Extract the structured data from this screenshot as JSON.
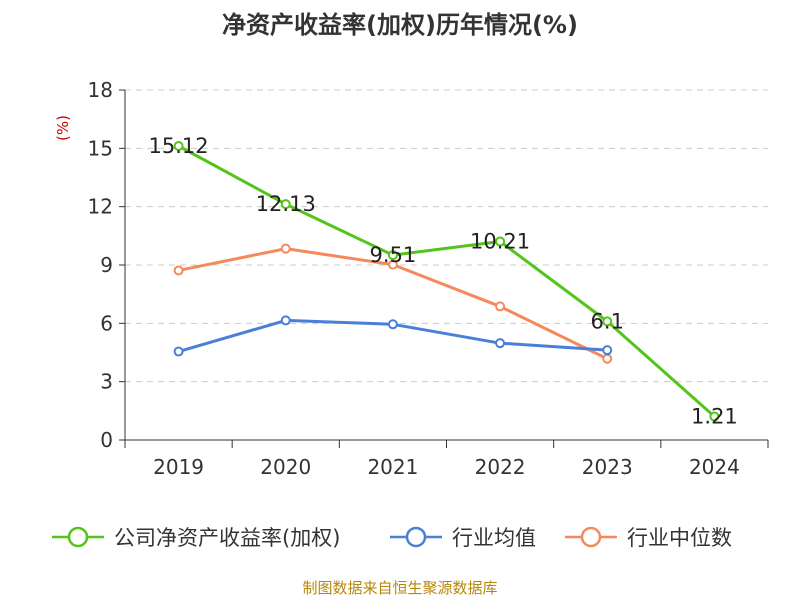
{
  "chart_data": {
    "type": "line",
    "title": "净资产收益率(加权)历年情况(%)",
    "ylabel": "(%)",
    "categories": [
      "2019",
      "2020",
      "2021",
      "2022",
      "2023",
      "2024"
    ],
    "ylim": [
      0,
      18
    ],
    "yticks": [
      0,
      3,
      6,
      9,
      12,
      15,
      18
    ],
    "grid": true,
    "legend_position": "bottom",
    "series": [
      {
        "name": "公司净资产收益率(加权)",
        "color": "#52c41a",
        "values": [
          15.12,
          12.13,
          9.51,
          10.21,
          6.1,
          1.21
        ],
        "labels": [
          "15.12",
          "12.13",
          "9.51",
          "10.21",
          "6.1",
          "1.21"
        ]
      },
      {
        "name": "行业均值",
        "color": "#4a7fd8",
        "values": [
          4.55,
          6.15,
          5.95,
          4.98,
          4.62,
          null
        ]
      },
      {
        "name": "行业中位数",
        "color": "#f5895b",
        "values": [
          8.72,
          9.84,
          9.02,
          6.87,
          4.18,
          null
        ]
      }
    ]
  },
  "footer": {
    "source": "制图数据来自恒生聚源数据库"
  }
}
